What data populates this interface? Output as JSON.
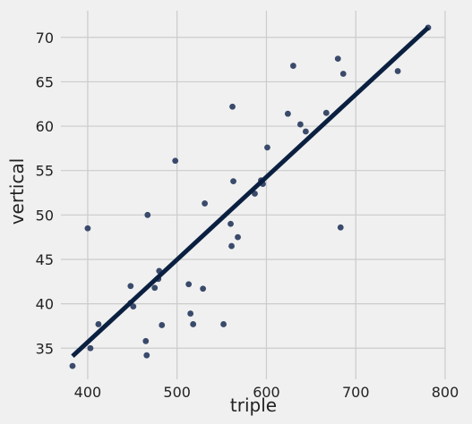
{
  "chart_data": {
    "type": "scatter",
    "xlabel": "triple",
    "ylabel": "vertical",
    "xlim": [
      370,
      800
    ],
    "ylim": [
      31.5,
      73
    ],
    "xticks": [
      400,
      500,
      600,
      700,
      800
    ],
    "yticks": [
      35,
      40,
      45,
      50,
      55,
      60,
      65,
      70
    ],
    "grid": true,
    "colors": {
      "background": "#f0f0f0",
      "grid": "#cbcbcb",
      "points": "#3a4a6b",
      "line": "#0b2040"
    },
    "points": [
      {
        "x": 383,
        "y": 33.0
      },
      {
        "x": 400,
        "y": 48.5
      },
      {
        "x": 403,
        "y": 35.0
      },
      {
        "x": 412,
        "y": 37.7
      },
      {
        "x": 448,
        "y": 42.0
      },
      {
        "x": 448,
        "y": 40.1
      },
      {
        "x": 451,
        "y": 39.7
      },
      {
        "x": 465,
        "y": 35.8
      },
      {
        "x": 466,
        "y": 34.2
      },
      {
        "x": 467,
        "y": 50.0
      },
      {
        "x": 475,
        "y": 41.8
      },
      {
        "x": 479,
        "y": 42.8
      },
      {
        "x": 480,
        "y": 43.7
      },
      {
        "x": 483,
        "y": 37.6
      },
      {
        "x": 498,
        "y": 56.1
      },
      {
        "x": 513,
        "y": 42.2
      },
      {
        "x": 515,
        "y": 38.9
      },
      {
        "x": 518,
        "y": 37.7
      },
      {
        "x": 529,
        "y": 41.7
      },
      {
        "x": 531,
        "y": 51.3
      },
      {
        "x": 552,
        "y": 37.7
      },
      {
        "x": 560,
        "y": 49.0
      },
      {
        "x": 561,
        "y": 46.5
      },
      {
        "x": 562,
        "y": 62.2
      },
      {
        "x": 563,
        "y": 53.8
      },
      {
        "x": 568,
        "y": 47.5
      },
      {
        "x": 587,
        "y": 52.4
      },
      {
        "x": 594,
        "y": 53.9
      },
      {
        "x": 596,
        "y": 53.5
      },
      {
        "x": 601,
        "y": 57.6
      },
      {
        "x": 624,
        "y": 61.4
      },
      {
        "x": 630,
        "y": 66.8
      },
      {
        "x": 638,
        "y": 60.2
      },
      {
        "x": 644,
        "y": 59.4
      },
      {
        "x": 667,
        "y": 61.5
      },
      {
        "x": 680,
        "y": 67.6
      },
      {
        "x": 683,
        "y": 48.6
      },
      {
        "x": 686,
        "y": 65.9
      },
      {
        "x": 747,
        "y": 66.2
      },
      {
        "x": 781,
        "y": 71.1
      }
    ],
    "fit_line": {
      "x": [
        383,
        781
      ],
      "y": [
        34.1,
        71.1
      ]
    }
  }
}
